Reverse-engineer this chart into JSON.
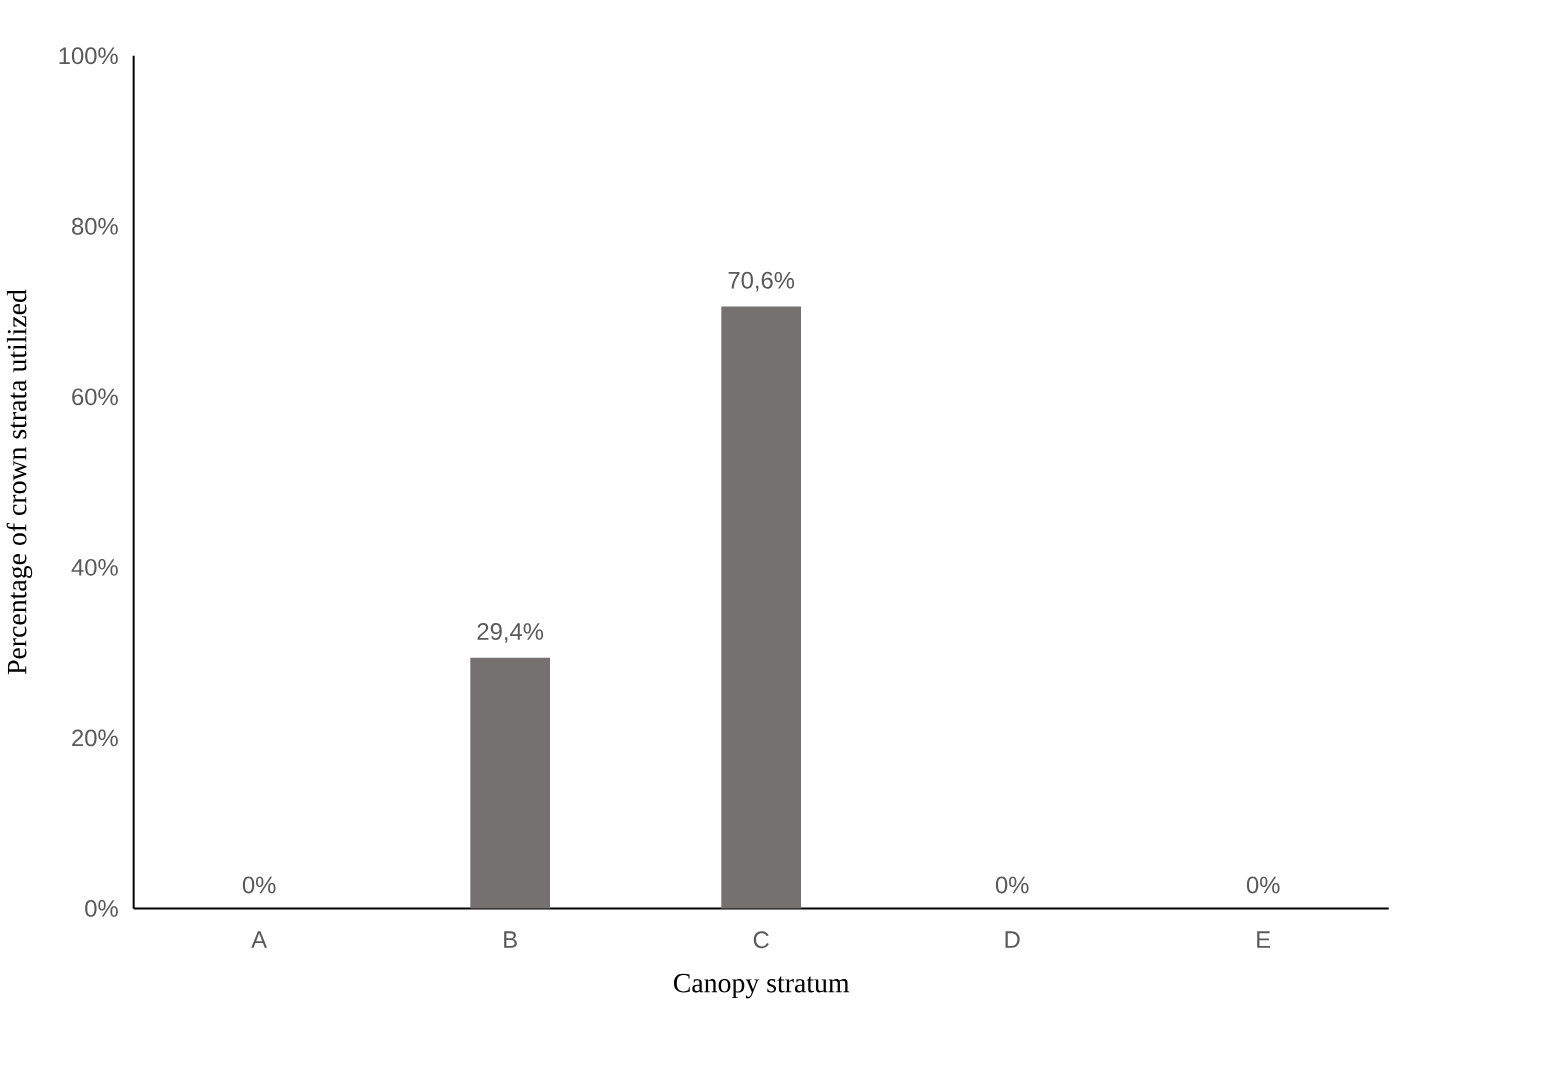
{
  "chart_data": {
    "type": "bar",
    "xlabel": "Canopy stratum",
    "ylabel": "Percentage of crown strata utilized",
    "categories": [
      "A",
      "B",
      "C",
      "D",
      "E"
    ],
    "values": [
      0,
      29.4,
      70.6,
      0,
      0
    ],
    "value_labels": [
      "0%",
      "29,4%",
      "70,6%",
      "0%",
      "0%"
    ],
    "color": "#767171",
    "ylim": [
      0,
      100
    ],
    "yticks": [
      {
        "value": 0,
        "label": "0%"
      },
      {
        "value": 20,
        "label": "20%"
      },
      {
        "value": 40,
        "label": "40%"
      },
      {
        "value": 60,
        "label": "60%"
      },
      {
        "value": 80,
        "label": "80%"
      },
      {
        "value": 100,
        "label": "100%"
      }
    ],
    "tick_labels": true
  }
}
